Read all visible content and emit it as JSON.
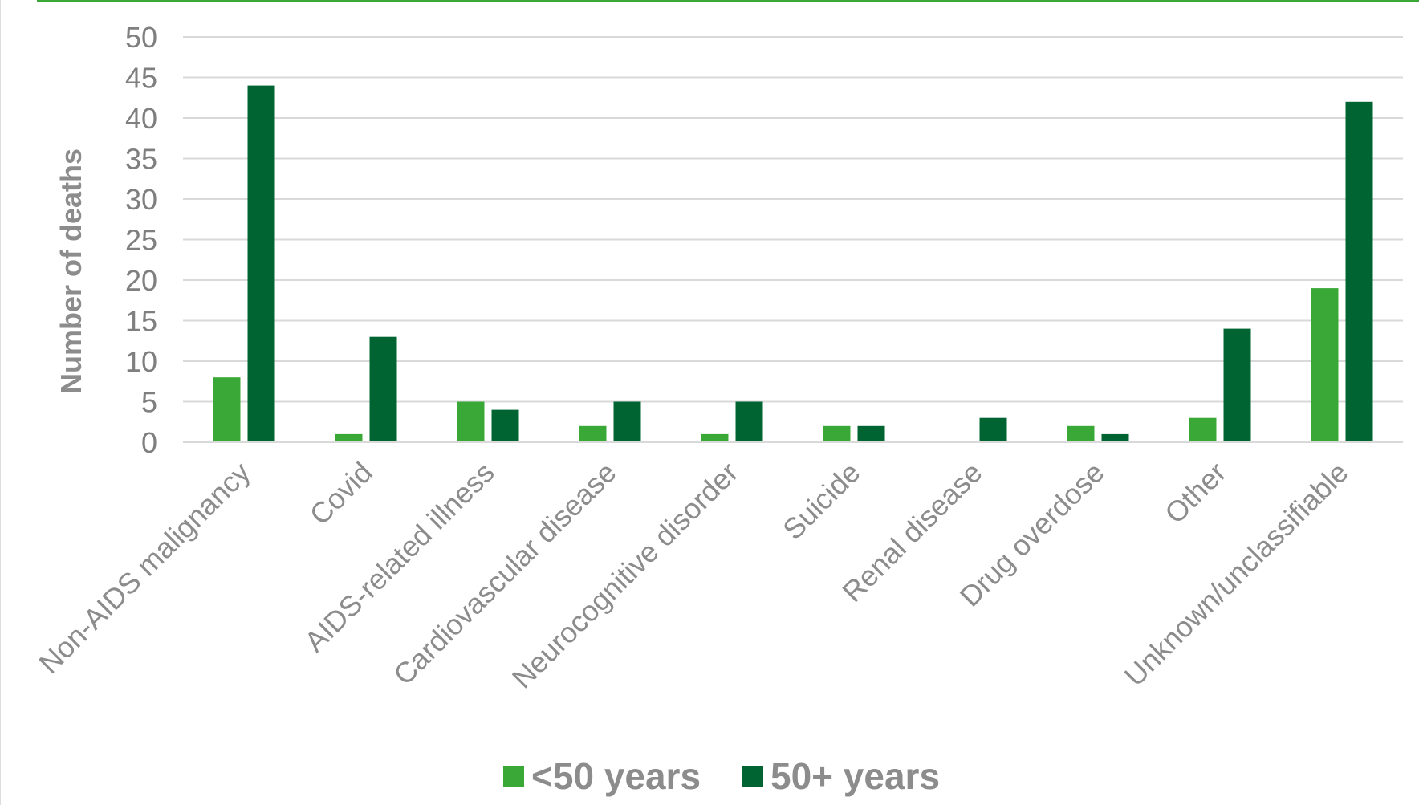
{
  "chart_data": {
    "type": "bar",
    "title": "",
    "xlabel": "",
    "ylabel": "Number of deaths",
    "ylim": [
      0,
      50
    ],
    "yticks": [
      0,
      5,
      10,
      15,
      20,
      25,
      30,
      35,
      40,
      45,
      50
    ],
    "grid": true,
    "legend_position": "bottom",
    "categories": [
      "Non-AIDS malignancy",
      "Covid",
      "AIDS-related illness",
      "Cardiovascular disease",
      "Neurocognitive disorder",
      "Suicide",
      "Renal disease",
      "Drug overdose",
      "Other",
      "Unknown/unclassifiable"
    ],
    "series": [
      {
        "name": "<50 years",
        "color": "#3aa836",
        "values": [
          8,
          1,
          5,
          2,
          1,
          2,
          0,
          2,
          3,
          19
        ]
      },
      {
        "name": "50+ years",
        "color": "#006432",
        "values": [
          44,
          13,
          4,
          5,
          5,
          2,
          3,
          1,
          14,
          42
        ]
      }
    ]
  }
}
